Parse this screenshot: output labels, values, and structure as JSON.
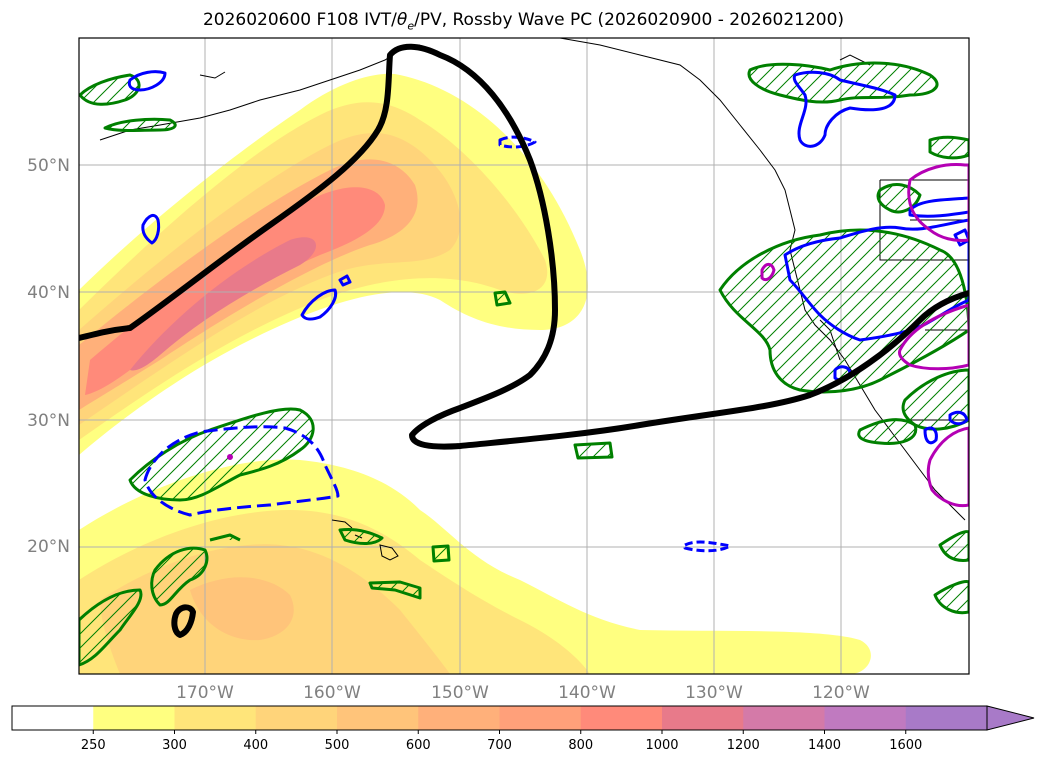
{
  "title": {
    "prefix": "2026020600 F108 IVT/",
    "theta_symbol": "θ",
    "theta_subscript": "e",
    "suffix": "/PV, Rossby Wave PC (2026020900 - 2026021200)"
  },
  "map": {
    "region": "North Pacific",
    "lat_range": [
      10,
      60
    ],
    "lon_range": [
      -180,
      -110
    ],
    "lat_labels": [
      "20°N",
      "30°N",
      "40°N",
      "50°N"
    ],
    "lon_labels": [
      "170°W",
      "160°W",
      "150°W",
      "140°W",
      "130°W",
      "120°W"
    ]
  },
  "colorbar": {
    "labels": [
      "250",
      "300",
      "400",
      "500",
      "600",
      "700",
      "800",
      "1000",
      "1200",
      "1400",
      "1600"
    ],
    "colors": [
      "#ffffff",
      "#ffff80",
      "#ffe57a",
      "#ffd47a",
      "#ffc47a",
      "#ffb07a",
      "#ffa07a",
      "#ff8a7a",
      "#e87a8a",
      "#d47aa8",
      "#c07ac0",
      "#a87ac8"
    ],
    "extend": "max"
  },
  "legend_colors": {
    "ivt_fill": "#ffe680",
    "rossby_wave": "#000000",
    "theta_e": "#0000ff",
    "pv": "#008000",
    "magenta": "#b400b4"
  }
}
